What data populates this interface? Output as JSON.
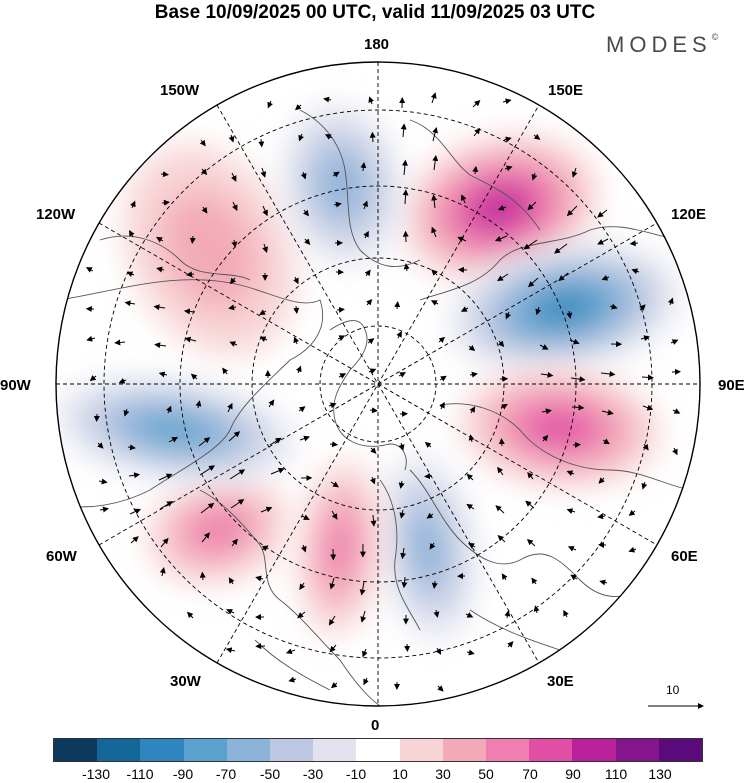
{
  "header": {
    "title": "Base 10/09/2025 00 UTC, valid 11/09/2025 03 UTC",
    "brand": "MODES",
    "brand_mark": "©"
  },
  "map": {
    "projection": "north-polar-stereographic",
    "longitude_labels": [
      "180",
      "150E",
      "120E",
      "90E",
      "60E",
      "30E",
      "0",
      "30W",
      "60W",
      "90W",
      "120W",
      "150W"
    ],
    "reference_vector": {
      "value": "10"
    },
    "anomaly_centers": [
      {
        "name": "pos-east-siberia",
        "lon": 150,
        "sign": "positive",
        "peak": 110
      },
      {
        "name": "neg-north-pacific",
        "lon": 115,
        "sign": "negative",
        "peak": -110
      },
      {
        "name": "pos-central-asia",
        "lon": 75,
        "sign": "positive",
        "peak": 90
      },
      {
        "name": "neg-europe",
        "lon": 20,
        "sign": "negative",
        "peak": -70
      },
      {
        "name": "pos-iceland",
        "lon": -10,
        "sign": "positive",
        "peak": 70
      },
      {
        "name": "pos-north-atlantic",
        "lon": -50,
        "sign": "positive",
        "peak": 70
      },
      {
        "name": "neg-hudson",
        "lon": -90,
        "sign": "negative",
        "peak": -90
      },
      {
        "name": "pos-canada-west",
        "lon": -115,
        "sign": "positive",
        "peak": 50
      },
      {
        "name": "neg-bering",
        "lon": -165,
        "sign": "negative",
        "peak": -70
      }
    ]
  },
  "colorbar": {
    "ticks": [
      "-130",
      "-110",
      "-90",
      "-70",
      "-50",
      "-30",
      "-10",
      "10",
      "30",
      "50",
      "70",
      "90",
      "110",
      "130"
    ],
    "colors": [
      "#0d3a5c",
      "#15679a",
      "#2f85bd",
      "#5aa2cd",
      "#8db3d9",
      "#bcc8e2",
      "#e2e3ef",
      "#ffffff",
      "#f8d4d6",
      "#f3aab8",
      "#ee7fb0",
      "#e04ea6",
      "#b9229a",
      "#84158c",
      "#5a0a7a"
    ]
  }
}
